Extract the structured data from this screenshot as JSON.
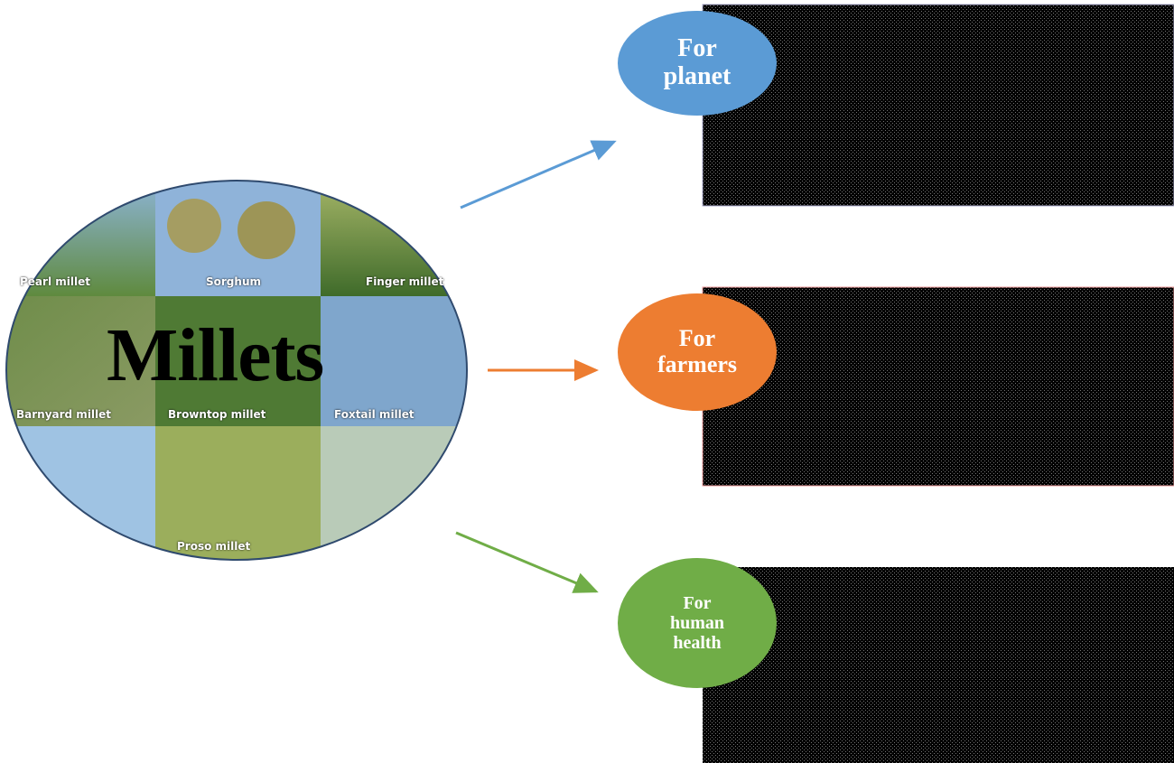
{
  "title": "Millets",
  "tiles": [
    "Pearl millet",
    "Sorghum",
    "Finger millet",
    "Barnyard millet",
    "Browntop millet",
    "Foxtail millet",
    "Proso millet"
  ],
  "branches": [
    {
      "label": "For planet"
    },
    {
      "label": "For farmers"
    },
    {
      "label": "For human health"
    }
  ]
}
